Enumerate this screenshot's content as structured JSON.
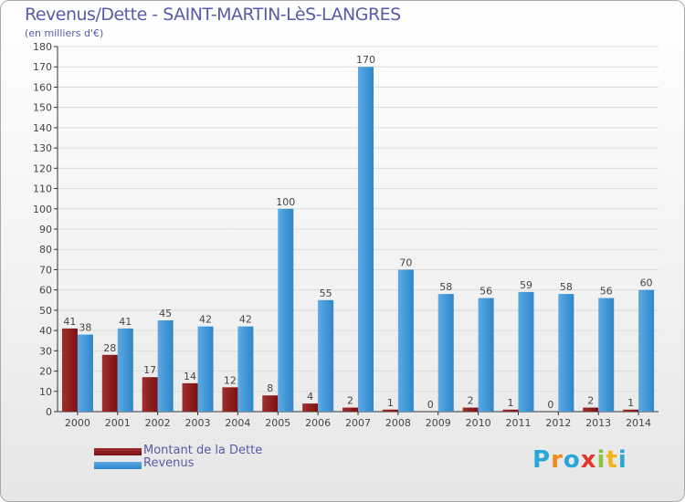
{
  "header": {
    "title": "Revenus/Dette - SAINT-MARTIN-LèS-LANGRES",
    "subtitle": "(en milliers d'€)"
  },
  "colors": {
    "debt": "#7a1010",
    "debt_light": "#a03030",
    "revenue": "#5aaae6",
    "revenue_dark": "#2f86c8",
    "axis": "#333333",
    "grid": "#dddddd",
    "text": "#444444"
  },
  "legend": {
    "debt_label": "Montant de la Dette",
    "revenue_label": "Revenus"
  },
  "logo": {
    "letters": [
      "P",
      "r",
      "o",
      "x",
      "i",
      "t",
      "i"
    ],
    "colors": [
      "#2aa6d8",
      "#f08a1c",
      "#2aa6d8",
      "#e23a2a",
      "#8bc43f",
      "#f0b41c",
      "#2aa6d8"
    ]
  },
  "chart_data": {
    "type": "bar",
    "title": "Revenus/Dette - SAINT-MARTIN-LèS-LANGRES",
    "xlabel": "",
    "ylabel": "(en milliers d'€)",
    "ylim": [
      0,
      180
    ],
    "yticks": [
      0,
      10,
      20,
      30,
      40,
      50,
      60,
      70,
      80,
      90,
      100,
      110,
      120,
      130,
      140,
      150,
      160,
      170,
      180
    ],
    "categories": [
      "2000",
      "2001",
      "2002",
      "2003",
      "2004",
      "2005",
      "2006",
      "2007",
      "2008",
      "2009",
      "2010",
      "2011",
      "2012",
      "2013",
      "2014"
    ],
    "series": [
      {
        "name": "Montant de la Dette",
        "values": [
          41,
          28,
          17,
          14,
          12,
          8,
          4,
          2,
          1,
          0,
          2,
          1,
          0,
          2,
          1
        ]
      },
      {
        "name": "Revenus",
        "values": [
          38,
          41,
          45,
          42,
          42,
          100,
          55,
          170,
          70,
          58,
          56,
          59,
          58,
          56,
          60
        ]
      }
    ],
    "legend_position": "bottom-left",
    "grid": true
  }
}
